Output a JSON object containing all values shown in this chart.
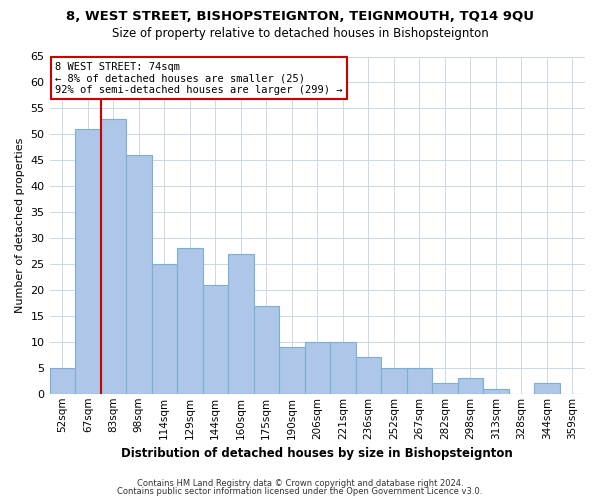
{
  "title1": "8, WEST STREET, BISHOPSTEIGNTON, TEIGNMOUTH, TQ14 9QU",
  "title2": "Size of property relative to detached houses in Bishopsteignton",
  "xlabel": "Distribution of detached houses by size in Bishopsteignton",
  "ylabel": "Number of detached properties",
  "categories": [
    "52sqm",
    "67sqm",
    "83sqm",
    "98sqm",
    "114sqm",
    "129sqm",
    "144sqm",
    "160sqm",
    "175sqm",
    "190sqm",
    "206sqm",
    "221sqm",
    "236sqm",
    "252sqm",
    "267sqm",
    "282sqm",
    "298sqm",
    "313sqm",
    "328sqm",
    "344sqm",
    "359sqm"
  ],
  "values": [
    5,
    51,
    53,
    46,
    25,
    28,
    21,
    27,
    17,
    9,
    10,
    10,
    7,
    5,
    5,
    2,
    3,
    1,
    0,
    2,
    0
  ],
  "bar_color": "#aec6e8",
  "bar_edge_color": "#7bafd4",
  "vline_color": "#cc0000",
  "vline_pos": 1.5,
  "ylim": [
    0,
    65
  ],
  "yticks": [
    0,
    5,
    10,
    15,
    20,
    25,
    30,
    35,
    40,
    45,
    50,
    55,
    60,
    65
  ],
  "annotation_title": "8 WEST STREET: 74sqm",
  "annotation_line1": "← 8% of detached houses are smaller (25)",
  "annotation_line2": "92% of semi-detached houses are larger (299) →",
  "annotation_box_color": "#ffffff",
  "annotation_box_edge": "#cc0000",
  "footer1": "Contains HM Land Registry data © Crown copyright and database right 2024.",
  "footer2": "Contains public sector information licensed under the Open Government Licence v3.0.",
  "bg_color": "#ffffff",
  "grid_color": "#c8d8e8",
  "title1_fontsize": 9.5,
  "title2_fontsize": 8.5
}
